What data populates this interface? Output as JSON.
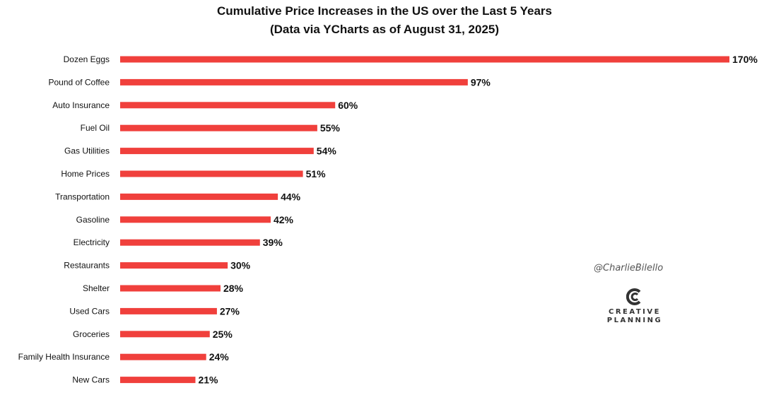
{
  "chart_data": {
    "type": "bar",
    "orientation": "horizontal",
    "title": "Cumulative Price Increases in the US over the Last 5 Years",
    "subtitle": "(Data via YCharts as of August 31, 2025)",
    "categories": [
      "Dozen Eggs",
      "Pound of Coffee",
      "Auto Insurance",
      "Fuel Oil",
      "Gas Utilities",
      "Home Prices",
      "Transportation",
      "Gasoline",
      "Electricity",
      "Restaurants",
      "Shelter",
      "Used Cars",
      "Groceries",
      "Family Health Insurance",
      "New Cars"
    ],
    "values": [
      170,
      97,
      60,
      55,
      54,
      51,
      44,
      42,
      39,
      30,
      28,
      27,
      25,
      24,
      21
    ],
    "data_labels": [
      "170%",
      "97%",
      "60%",
      "55%",
      "54%",
      "51%",
      "44%",
      "42%",
      "39%",
      "30%",
      "28%",
      "27%",
      "25%",
      "24%",
      "21%"
    ],
    "xlim": [
      0,
      170
    ],
    "grid": false,
    "bar_color": "#f0403c"
  },
  "watermark": {
    "handle": "@CharlieBilello",
    "logo_line1": "CREATIVE",
    "logo_line2": "PLANNING",
    "logo_icon": "creative-planning-logo-icon"
  }
}
